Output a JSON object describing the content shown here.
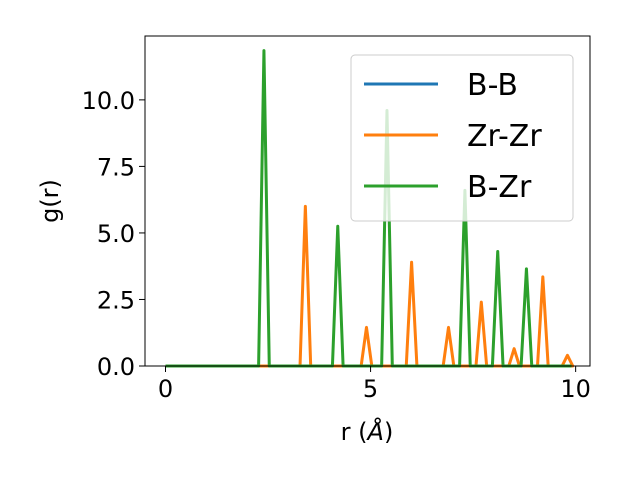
{
  "chart_data": {
    "type": "line",
    "xlabel_prefix": "r (",
    "xlabel_unit": "Å",
    "xlabel_suffix": ")",
    "ylabel": "g(r)",
    "xlim": [
      -0.5,
      10.35
    ],
    "ylim": [
      0.0,
      12.4
    ],
    "xticks": [
      0,
      5,
      10
    ],
    "xtick_labels": [
      "0",
      "5",
      "10"
    ],
    "yticks": [
      0.0,
      2.5,
      5.0,
      7.5,
      10.0
    ],
    "ytick_labels": [
      "0.0",
      "2.5",
      "5.0",
      "7.5",
      "10.0"
    ],
    "grid": false,
    "legend_position": "top-right",
    "peak_half_width": 0.13,
    "x_range": [
      0,
      9.9
    ],
    "series": [
      {
        "name": "B-B",
        "color": "#1f77b4",
        "peaks": []
      },
      {
        "name": "Zr-Zr",
        "color": "#ff7f0e",
        "peaks": [
          [
            3.41,
            6.0
          ],
          [
            4.9,
            1.45
          ],
          [
            6.0,
            3.9
          ],
          [
            6.9,
            1.45
          ],
          [
            7.7,
            2.4
          ],
          [
            8.5,
            0.65
          ],
          [
            9.2,
            3.35
          ],
          [
            9.8,
            0.4
          ]
        ]
      },
      {
        "name": "B-Zr",
        "color": "#2ca02c",
        "peaks": [
          [
            2.4,
            11.85
          ],
          [
            4.2,
            5.25
          ],
          [
            5.4,
            9.6
          ],
          [
            7.3,
            6.6
          ],
          [
            8.1,
            4.3
          ],
          [
            8.8,
            3.65
          ]
        ]
      }
    ]
  }
}
